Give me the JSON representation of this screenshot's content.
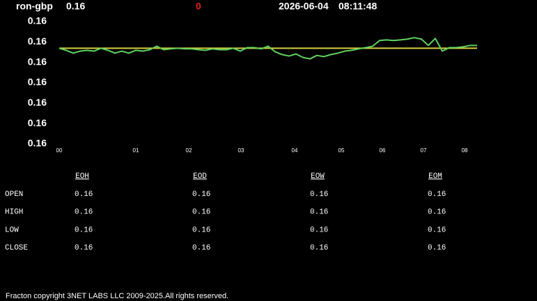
{
  "header": {
    "symbol": "ron-gbp",
    "price": "0.16",
    "change": "0",
    "date": "2026-06-04",
    "time": "08:11:48"
  },
  "chart_data": {
    "type": "line",
    "x": [
      0,
      1,
      2,
      3,
      4,
      5,
      6,
      7,
      8,
      9,
      10,
      11,
      12,
      13,
      14,
      15,
      16,
      17,
      18,
      19,
      20,
      21,
      22,
      23,
      24,
      25,
      26,
      27,
      28,
      29,
      30,
      31,
      32,
      33,
      34,
      35,
      36,
      37,
      38,
      39,
      40,
      41,
      42,
      43,
      44,
      45,
      46,
      47,
      48,
      49,
      50,
      51,
      52,
      53,
      54,
      55,
      56,
      57,
      58,
      59,
      60
    ],
    "series": [
      {
        "color": "#5fd35f",
        "values": [
          0.161069,
          0.161059,
          0.161045,
          0.161055,
          0.161059,
          0.161055,
          0.161069,
          0.161059,
          0.161045,
          0.161055,
          0.161045,
          0.161059,
          0.161055,
          0.161062,
          0.161079,
          0.161062,
          0.161066,
          0.161069,
          0.161066,
          0.161066,
          0.161062,
          0.161059,
          0.161066,
          0.161062,
          0.161062,
          0.161069,
          0.161055,
          0.161072,
          0.161072,
          0.161066,
          0.161079,
          0.161052,
          0.161038,
          0.161031,
          0.161041,
          0.161024,
          0.161017,
          0.161034,
          0.161028,
          0.161038,
          0.161045,
          0.161055,
          0.161059,
          0.161066,
          0.161072,
          0.161079,
          0.161107,
          0.16111,
          0.161107,
          0.16111,
          0.161114,
          0.161121,
          0.161114,
          0.161083,
          0.161117,
          0.161055,
          0.161072,
          0.161072,
          0.161076,
          0.161083,
          0.161083
        ]
      }
    ],
    "reference_line": {
      "value": 0.161069,
      "color": "#d8d040"
    },
    "xlim": [
      0,
      60
    ],
    "xticks": [
      {
        "value": 0,
        "label": "00"
      },
      {
        "value": 11,
        "label": "01"
      },
      {
        "value": 18.6,
        "label": "02"
      },
      {
        "value": 26.1,
        "label": "03"
      },
      {
        "value": 33.8,
        "label": "04"
      },
      {
        "value": 40.5,
        "label": "05"
      },
      {
        "value": 46.4,
        "label": "06"
      },
      {
        "value": 52.3,
        "label": "07"
      },
      {
        "value": 58.2,
        "label": "08"
      }
    ],
    "ylim": [
      0.1606,
      0.1612
    ],
    "yticks": [
      {
        "value": 0.1612,
        "label": "0.16"
      },
      {
        "value": 0.1611,
        "label": "0.16"
      },
      {
        "value": 0.161,
        "label": "0.16"
      },
      {
        "value": 0.1609,
        "label": "0.16"
      },
      {
        "value": 0.1608,
        "label": "0.16"
      },
      {
        "value": 0.1607,
        "label": "0.16"
      },
      {
        "value": 0.1606,
        "label": "0.16"
      }
    ],
    "grid": false
  },
  "table": {
    "columns": [
      "EOH",
      "EOD",
      "EOW",
      "EOM"
    ],
    "rows": [
      [
        "OPEN",
        "0.16",
        "0.16",
        "0.16",
        "0.16"
      ],
      [
        "HIGH",
        "0.16",
        "0.16",
        "0.16",
        "0.16"
      ],
      [
        "LOW",
        "0.16",
        "0.16",
        "0.16",
        "0.16"
      ],
      [
        "CLOSE",
        "0.16",
        "0.16",
        "0.16",
        "0.16"
      ]
    ]
  },
  "footer": "Fracton copyright 3NET LABS LLC 2009-2025.All rights reserved."
}
